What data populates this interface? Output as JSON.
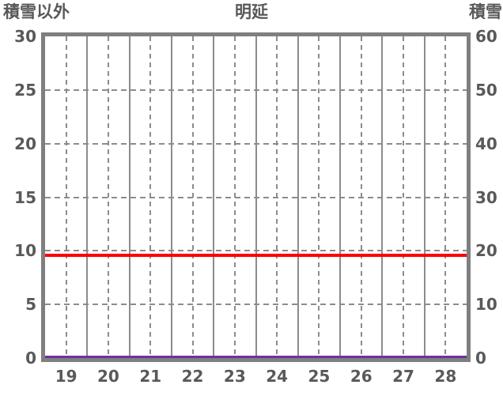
{
  "chart_data": {
    "type": "line",
    "title": "明延",
    "left_axis": {
      "label": "積雪以外",
      "min": 0,
      "max": 30,
      "ticks": [
        30,
        25,
        20,
        15,
        10,
        5,
        0
      ]
    },
    "right_axis": {
      "label": "積雪",
      "min": 0,
      "max": 60,
      "ticks": [
        60,
        50,
        40,
        30,
        20,
        10,
        0
      ]
    },
    "x_axis": {
      "categories": [
        "19",
        "20",
        "21",
        "22",
        "23",
        "24",
        "25",
        "26",
        "27",
        "28"
      ]
    },
    "series": [
      {
        "name": "red-line",
        "axis": "left",
        "color": "#ff0000",
        "thickness": 4,
        "values": [
          9.6,
          9.6,
          9.6,
          9.6,
          9.6,
          9.6,
          9.6,
          9.6,
          9.6,
          9.6
        ]
      },
      {
        "name": "purple-line",
        "axis": "right",
        "color": "#7030a0",
        "thickness": 3,
        "values": [
          0,
          0,
          0,
          0,
          0,
          0,
          0,
          0,
          0,
          0
        ]
      }
    ],
    "grid": {
      "horizontal_style": "dashed",
      "vertical_center_style": "dashed",
      "vertical_boundary_style": "solid"
    },
    "colors": {
      "frame": "#7f7f7f",
      "grid": "#8c8c8c",
      "text": "#595959",
      "background": "#ffffff"
    }
  }
}
